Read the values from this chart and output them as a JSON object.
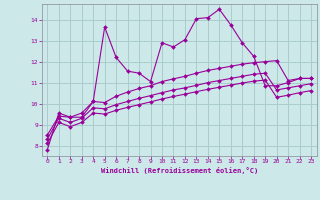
{
  "bg_color": "#cce8e8",
  "line_color": "#990099",
  "grid_color": "#aacccc",
  "xlabel": "Windchill (Refroidissement éolien,°C)",
  "xlim": [
    -0.5,
    23.5
  ],
  "ylim": [
    7.5,
    14.75
  ],
  "yticks": [
    8,
    9,
    10,
    11,
    12,
    13,
    14
  ],
  "xticks": [
    0,
    1,
    2,
    3,
    4,
    5,
    6,
    7,
    8,
    9,
    10,
    11,
    12,
    13,
    14,
    15,
    16,
    17,
    18,
    19,
    20,
    21,
    22,
    23
  ],
  "series1_x": [
    0,
    1,
    2,
    3,
    4,
    5,
    6,
    7,
    8,
    9,
    10,
    11,
    12,
    13,
    14,
    15,
    16,
    17,
    18,
    19,
    20,
    21,
    22,
    23
  ],
  "series1_y": [
    7.8,
    9.55,
    9.35,
    9.35,
    10.1,
    13.65,
    12.2,
    11.55,
    11.45,
    11.05,
    12.9,
    12.7,
    13.05,
    14.05,
    14.1,
    14.5,
    13.75,
    12.9,
    12.25,
    10.85,
    10.85,
    11.0,
    11.2,
    11.2
  ],
  "series2_x": [
    0,
    1,
    2,
    3,
    4,
    5,
    6,
    7,
    8,
    9,
    10,
    11,
    12,
    13,
    14,
    15,
    16,
    17,
    18,
    19,
    20,
    21,
    22,
    23
  ],
  "series2_y": [
    8.5,
    9.4,
    9.35,
    9.55,
    10.1,
    10.05,
    10.35,
    10.55,
    10.72,
    10.85,
    11.05,
    11.18,
    11.3,
    11.45,
    11.58,
    11.68,
    11.78,
    11.88,
    11.95,
    12.0,
    12.05,
    11.1,
    11.2,
    11.2
  ],
  "series3_x": [
    0,
    1,
    2,
    3,
    4,
    5,
    6,
    7,
    8,
    9,
    10,
    11,
    12,
    13,
    14,
    15,
    16,
    17,
    18,
    19,
    20,
    21,
    22,
    23
  ],
  "series3_y": [
    8.3,
    9.3,
    9.1,
    9.3,
    9.8,
    9.75,
    9.95,
    10.1,
    10.25,
    10.38,
    10.52,
    10.65,
    10.75,
    10.87,
    11.0,
    11.1,
    11.2,
    11.3,
    11.4,
    11.45,
    10.65,
    10.75,
    10.85,
    10.95
  ],
  "series4_x": [
    0,
    1,
    2,
    3,
    4,
    5,
    6,
    7,
    8,
    9,
    10,
    11,
    12,
    13,
    14,
    15,
    16,
    17,
    18,
    19,
    20,
    21,
    22,
    23
  ],
  "series4_y": [
    8.1,
    9.1,
    8.9,
    9.1,
    9.55,
    9.5,
    9.68,
    9.82,
    9.95,
    10.08,
    10.22,
    10.34,
    10.45,
    10.57,
    10.68,
    10.78,
    10.88,
    10.98,
    11.07,
    11.12,
    10.3,
    10.4,
    10.52,
    10.62
  ]
}
